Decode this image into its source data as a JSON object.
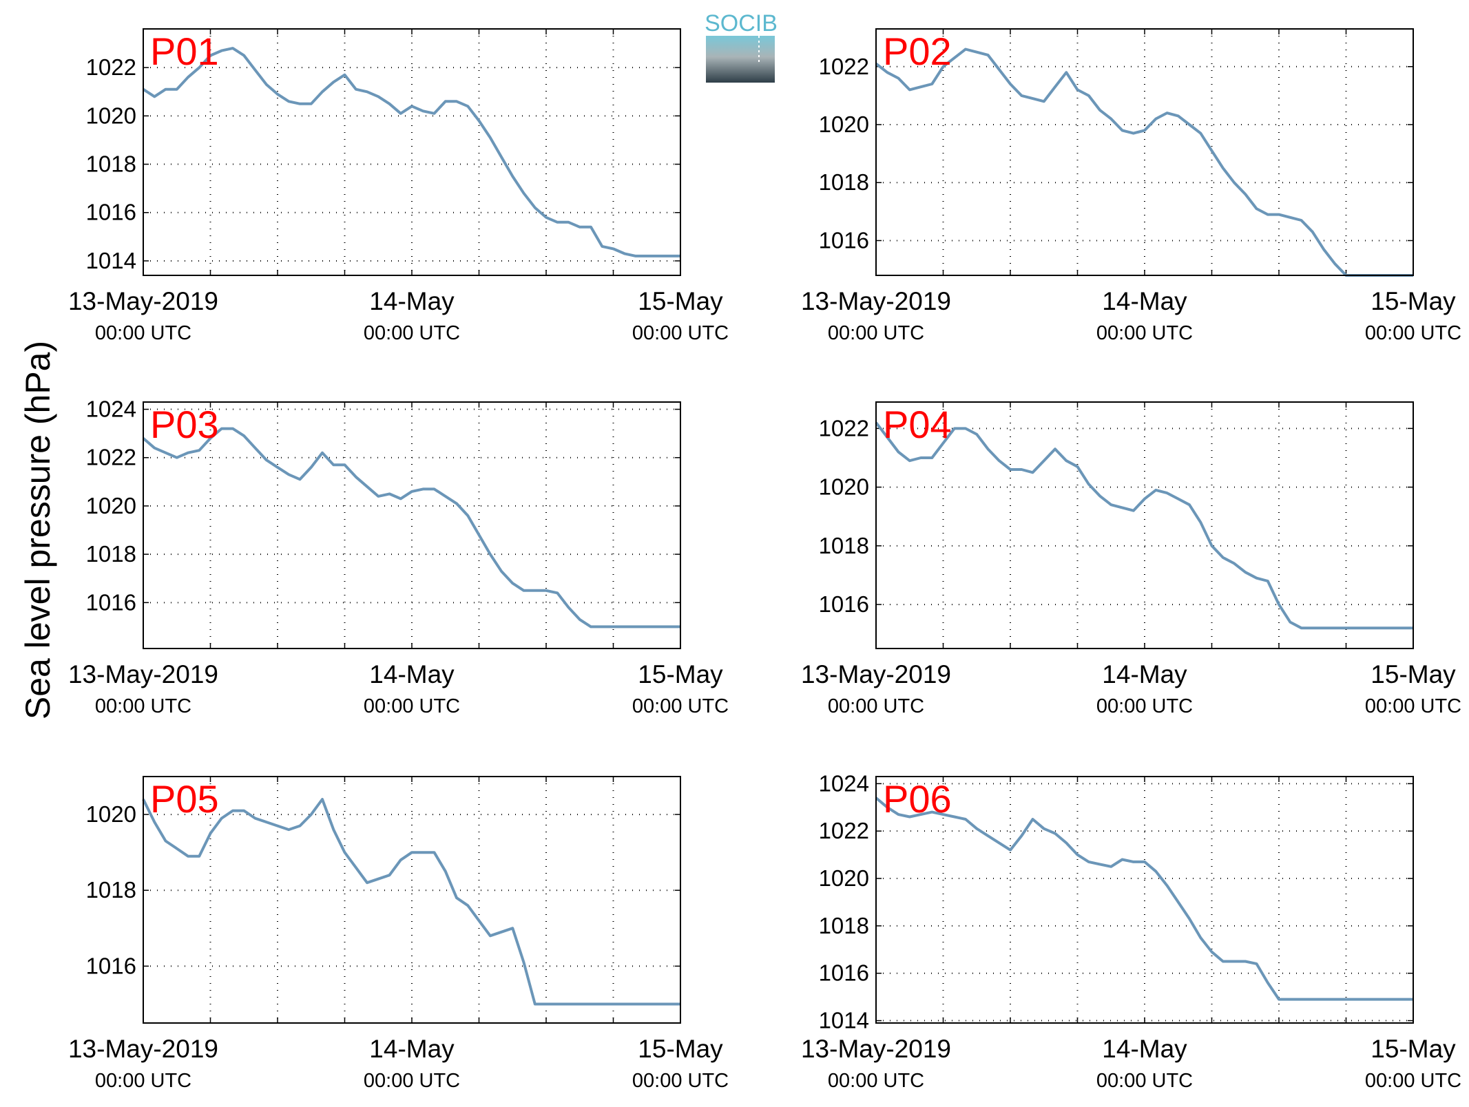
{
  "figure": {
    "ylabel": "Sea level pressure (hPa)",
    "logo_text": "SOCIB"
  },
  "chart_data": [
    {
      "type": "line",
      "title": "P01",
      "ylim": [
        1013.4,
        1023.6
      ],
      "yticks": [
        1014,
        1016,
        1018,
        1020,
        1022
      ],
      "xlim": [
        0,
        48
      ],
      "xtick_labels": [
        {
          "date": "13-May-2019",
          "time": "00:00 UTC"
        },
        {
          "date": "14-May",
          "time": "00:00 UTC"
        },
        {
          "date": "15-May",
          "time": "00:00 UTC"
        }
      ],
      "grid": true,
      "line_color": "#6b96b8",
      "x": [
        0,
        1,
        2,
        3,
        4,
        5,
        6,
        7,
        8,
        9,
        10,
        11,
        12,
        13,
        14,
        15,
        16,
        17,
        18,
        19,
        20,
        21,
        22,
        23,
        24,
        25,
        26,
        27,
        28,
        29,
        30,
        31,
        32,
        33,
        34,
        35,
        36,
        37,
        38,
        39,
        40,
        41,
        42,
        43,
        44,
        45,
        46,
        47,
        48
      ],
      "y": [
        1021.1,
        1020.8,
        1021.1,
        1021.1,
        1021.6,
        1022.0,
        1022.5,
        1022.7,
        1022.8,
        1022.5,
        1021.9,
        1021.3,
        1020.9,
        1020.6,
        1020.5,
        1020.5,
        1021.0,
        1021.4,
        1021.7,
        1021.1,
        1021.0,
        1020.8,
        1020.5,
        1020.1,
        1020.4,
        1020.2,
        1020.1,
        1020.6,
        1020.6,
        1020.4,
        1019.8,
        1019.1,
        1018.3,
        1017.5,
        1016.8,
        1016.2,
        1015.8,
        1015.6,
        1015.6,
        1015.4,
        1015.4,
        1014.6,
        1014.5,
        1014.3,
        1014.2,
        1014.2,
        1014.2,
        1014.2,
        1014.2
      ]
    },
    {
      "type": "line",
      "title": "P02",
      "ylim": [
        1014.8,
        1023.3
      ],
      "yticks": [
        1016,
        1018,
        1020,
        1022
      ],
      "xlim": [
        0,
        48
      ],
      "xtick_labels": [
        {
          "date": "13-May-2019",
          "time": "00:00 UTC"
        },
        {
          "date": "14-May",
          "time": "00:00 UTC"
        },
        {
          "date": "15-May",
          "time": "00:00 UTC"
        }
      ],
      "grid": true,
      "line_color": "#6b96b8",
      "x": [
        0,
        1,
        2,
        3,
        4,
        5,
        6,
        7,
        8,
        9,
        10,
        11,
        12,
        13,
        14,
        15,
        16,
        17,
        18,
        19,
        20,
        21,
        22,
        23,
        24,
        25,
        26,
        27,
        28,
        29,
        30,
        31,
        32,
        33,
        34,
        35,
        36,
        37,
        38,
        39,
        40,
        41,
        42,
        43,
        44,
        45,
        46,
        47,
        48
      ],
      "y": [
        1022.1,
        1021.8,
        1021.6,
        1021.2,
        1021.3,
        1021.4,
        1022.0,
        1022.3,
        1022.6,
        1022.5,
        1022.4,
        1021.9,
        1021.4,
        1021.0,
        1020.9,
        1020.8,
        1021.3,
        1021.8,
        1021.2,
        1021.0,
        1020.5,
        1020.2,
        1019.8,
        1019.7,
        1019.8,
        1020.2,
        1020.4,
        1020.3,
        1020.0,
        1019.7,
        1019.1,
        1018.5,
        1018.0,
        1017.6,
        1017.1,
        1016.9,
        1016.9,
        1016.8,
        1016.7,
        1016.3,
        1015.7,
        1015.2,
        1014.8,
        1014.8,
        1014.8,
        1014.8,
        1014.8,
        1014.8,
        1014.8
      ]
    },
    {
      "type": "line",
      "title": "P03",
      "ylim": [
        1014.1,
        1024.3
      ],
      "yticks": [
        1016,
        1018,
        1020,
        1022,
        1024
      ],
      "xlim": [
        0,
        48
      ],
      "xtick_labels": [
        {
          "date": "13-May-2019",
          "time": "00:00 UTC"
        },
        {
          "date": "14-May",
          "time": "00:00 UTC"
        },
        {
          "date": "15-May",
          "time": "00:00 UTC"
        }
      ],
      "grid": true,
      "line_color": "#6b96b8",
      "x": [
        0,
        1,
        2,
        3,
        4,
        5,
        6,
        7,
        8,
        9,
        10,
        11,
        12,
        13,
        14,
        15,
        16,
        17,
        18,
        19,
        20,
        21,
        22,
        23,
        24,
        25,
        26,
        27,
        28,
        29,
        30,
        31,
        32,
        33,
        34,
        35,
        36,
        37,
        38,
        39,
        40,
        41,
        42,
        43,
        44,
        45,
        46,
        47,
        48
      ],
      "y": [
        1022.8,
        1022.4,
        1022.2,
        1022.0,
        1022.2,
        1022.3,
        1022.8,
        1023.2,
        1023.2,
        1022.9,
        1022.4,
        1021.9,
        1021.6,
        1021.3,
        1021.1,
        1021.6,
        1022.2,
        1021.7,
        1021.7,
        1021.2,
        1020.8,
        1020.4,
        1020.5,
        1020.3,
        1020.6,
        1020.7,
        1020.7,
        1020.4,
        1020.1,
        1019.6,
        1018.8,
        1018.0,
        1017.3,
        1016.8,
        1016.5,
        1016.5,
        1016.5,
        1016.4,
        1015.8,
        1015.3,
        1015.0,
        1015.0,
        1015.0,
        1015.0,
        1015.0,
        1015.0,
        1015.0,
        1015.0,
        1015.0
      ]
    },
    {
      "type": "line",
      "title": "P04",
      "ylim": [
        1014.5,
        1022.9
      ],
      "yticks": [
        1016,
        1018,
        1020,
        1022
      ],
      "xlim": [
        0,
        48
      ],
      "xtick_labels": [
        {
          "date": "13-May-2019",
          "time": "00:00 UTC"
        },
        {
          "date": "14-May",
          "time": "00:00 UTC"
        },
        {
          "date": "15-May",
          "time": "00:00 UTC"
        }
      ],
      "grid": true,
      "line_color": "#6b96b8",
      "x": [
        0,
        1,
        2,
        3,
        4,
        5,
        6,
        7,
        8,
        9,
        10,
        11,
        12,
        13,
        14,
        15,
        16,
        17,
        18,
        19,
        20,
        21,
        22,
        23,
        24,
        25,
        26,
        27,
        28,
        29,
        30,
        31,
        32,
        33,
        34,
        35,
        36,
        37,
        38,
        39,
        40,
        41,
        42,
        43,
        44,
        45,
        46,
        47,
        48
      ],
      "y": [
        1022.2,
        1021.7,
        1021.2,
        1020.9,
        1021.0,
        1021.0,
        1021.5,
        1022.0,
        1022.0,
        1021.8,
        1021.3,
        1020.9,
        1020.6,
        1020.6,
        1020.5,
        1020.9,
        1021.3,
        1020.9,
        1020.7,
        1020.1,
        1019.7,
        1019.4,
        1019.3,
        1019.2,
        1019.6,
        1019.9,
        1019.8,
        1019.6,
        1019.4,
        1018.8,
        1018.0,
        1017.6,
        1017.4,
        1017.1,
        1016.9,
        1016.8,
        1016.0,
        1015.4,
        1015.2,
        1015.2,
        1015.2,
        1015.2,
        1015.2,
        1015.2,
        1015.2,
        1015.2,
        1015.2,
        1015.2,
        1015.2
      ]
    },
    {
      "type": "line",
      "title": "P05",
      "ylim": [
        1014.5,
        1021.0
      ],
      "yticks": [
        1016,
        1018,
        1020
      ],
      "xlim": [
        0,
        48
      ],
      "xtick_labels": [
        {
          "date": "13-May-2019",
          "time": "00:00 UTC"
        },
        {
          "date": "14-May",
          "time": "00:00 UTC"
        },
        {
          "date": "15-May",
          "time": "00:00 UTC"
        }
      ],
      "grid": true,
      "line_color": "#6b96b8",
      "x": [
        0,
        1,
        2,
        3,
        4,
        5,
        6,
        7,
        8,
        9,
        10,
        11,
        12,
        13,
        14,
        15,
        16,
        17,
        18,
        19,
        20,
        21,
        22,
        23,
        24,
        25,
        26,
        27,
        28,
        29,
        30,
        31,
        32,
        33,
        34,
        35,
        36,
        37,
        38,
        39,
        40,
        41,
        42,
        43,
        44,
        45,
        46,
        47,
        48
      ],
      "y": [
        1020.4,
        1019.8,
        1019.3,
        1019.1,
        1018.9,
        1018.9,
        1019.5,
        1019.9,
        1020.1,
        1020.1,
        1019.9,
        1019.8,
        1019.7,
        1019.6,
        1019.7,
        1020.0,
        1020.4,
        1019.6,
        1019.0,
        1018.6,
        1018.2,
        1018.3,
        1018.4,
        1018.8,
        1019.0,
        1019.0,
        1019.0,
        1018.5,
        1017.8,
        1017.6,
        1017.2,
        1016.8,
        1016.9,
        1017.0,
        1016.1,
        1015.0,
        1015.0,
        1015.0,
        1015.0,
        1015.0,
        1015.0,
        1015.0,
        1015.0,
        1015.0,
        1015.0,
        1015.0,
        1015.0,
        1015.0,
        1015.0
      ]
    },
    {
      "type": "line",
      "title": "P06",
      "ylim": [
        1013.9,
        1024.3
      ],
      "yticks": [
        1014,
        1016,
        1018,
        1020,
        1022,
        1024
      ],
      "xlim": [
        0,
        48
      ],
      "xtick_labels": [
        {
          "date": "13-May-2019",
          "time": "00:00 UTC"
        },
        {
          "date": "14-May",
          "time": "00:00 UTC"
        },
        {
          "date": "15-May",
          "time": "00:00 UTC"
        }
      ],
      "grid": true,
      "line_color": "#6b96b8",
      "x": [
        0,
        1,
        2,
        3,
        4,
        5,
        6,
        7,
        8,
        9,
        10,
        11,
        12,
        13,
        14,
        15,
        16,
        17,
        18,
        19,
        20,
        21,
        22,
        23,
        24,
        25,
        26,
        27,
        28,
        29,
        30,
        31,
        32,
        33,
        34,
        35,
        36,
        37,
        38,
        39,
        40,
        41,
        42,
        43,
        44,
        45,
        46,
        47,
        48
      ],
      "y": [
        1023.4,
        1023.0,
        1022.7,
        1022.6,
        1022.7,
        1022.8,
        1022.7,
        1022.6,
        1022.5,
        1022.1,
        1021.8,
        1021.5,
        1021.2,
        1021.8,
        1022.5,
        1022.1,
        1021.9,
        1021.5,
        1021.0,
        1020.7,
        1020.6,
        1020.5,
        1020.8,
        1020.7,
        1020.7,
        1020.3,
        1019.7,
        1019.0,
        1018.3,
        1017.5,
        1016.9,
        1016.5,
        1016.5,
        1016.5,
        1016.4,
        1015.6,
        1014.9,
        1014.9,
        1014.9,
        1014.9,
        1014.9,
        1014.9,
        1014.9,
        1014.9,
        1014.9,
        1014.9,
        1014.9,
        1014.9,
        1014.9
      ]
    }
  ]
}
